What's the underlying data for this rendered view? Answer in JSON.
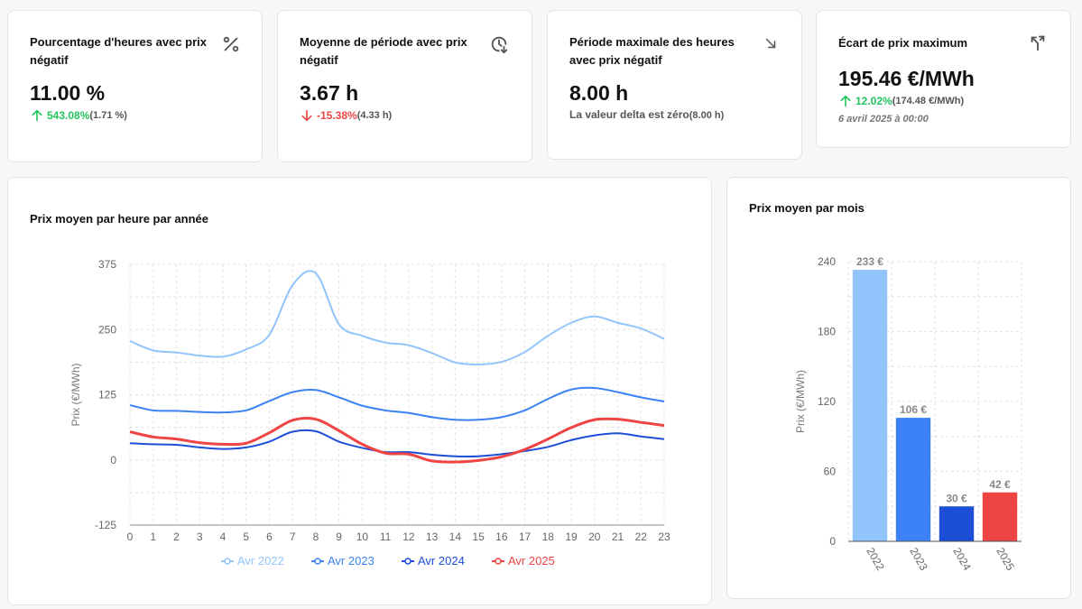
{
  "kpis": [
    {
      "title": "Pourcentage d'heures avec prix négatif",
      "icon": "percent-icon",
      "value": "11.00 %",
      "delta": "543.08%",
      "delta_direction": "up",
      "previous": "(1.71 %)"
    },
    {
      "title": "Moyenne de période avec prix négatif",
      "icon": "clock-down-icon",
      "value": "3.67 h",
      "delta": "-15.38%",
      "delta_direction": "down",
      "previous": "(4.33 h)"
    },
    {
      "title": "Période maximale des heures avec prix négatif",
      "icon": "arrow-down-right-icon",
      "value": "8.00 h",
      "note": "La valeur delta est zéro",
      "previous": "(8.00 h)"
    },
    {
      "title": "Écart de prix maximum",
      "icon": "split-arrows-icon",
      "value": "195.46 €/MWh",
      "delta": "12.02%",
      "delta_direction": "up",
      "previous": "(174.48 €/MWh)",
      "date": "6 avril 2025 à 00:00"
    }
  ],
  "colors": {
    "2022": "#93c5fd",
    "2023": "#3b82f6",
    "2024": "#1d4ed8",
    "2025": "#ef4444",
    "up": "#22c55e",
    "down": "#ef4444"
  },
  "chart_data": [
    {
      "type": "line",
      "title": "Prix moyen par heure par année",
      "ylabel": "Prix (€/MWh)",
      "xlabel": "",
      "x": [
        0,
        1,
        2,
        3,
        4,
        5,
        6,
        7,
        8,
        9,
        10,
        11,
        12,
        13,
        14,
        15,
        16,
        17,
        18,
        19,
        20,
        21,
        22,
        23
      ],
      "ylim": [
        -125,
        375
      ],
      "yticks": [
        -125,
        0,
        125,
        250,
        375
      ],
      "grid": true,
      "legend": "bottom",
      "series": [
        {
          "name": "Avr 2022",
          "color": "#93c5fd",
          "values": [
            228,
            210,
            206,
            200,
            198,
            212,
            240,
            335,
            358,
            260,
            238,
            225,
            220,
            205,
            187,
            183,
            188,
            207,
            238,
            263,
            275,
            263,
            252,
            232
          ]
        },
        {
          "name": "Avr 2023",
          "color": "#3b82f6",
          "values": [
            105,
            95,
            94,
            92,
            91,
            95,
            113,
            130,
            134,
            120,
            104,
            95,
            90,
            82,
            77,
            77,
            82,
            95,
            117,
            135,
            138,
            130,
            120,
            112
          ]
        },
        {
          "name": "Avr 2024",
          "color": "#1d4ed8",
          "values": [
            32,
            30,
            29,
            24,
            21,
            24,
            35,
            54,
            55,
            35,
            23,
            15,
            15,
            10,
            7,
            7,
            11,
            17,
            25,
            38,
            47,
            51,
            45,
            40
          ]
        },
        {
          "name": "Avr 2025",
          "color": "#ef4444",
          "values": [
            54,
            44,
            40,
            33,
            30,
            32,
            52,
            76,
            78,
            56,
            30,
            13,
            11,
            -2,
            -4,
            -1,
            6,
            20,
            40,
            62,
            77,
            78,
            72,
            66
          ]
        }
      ]
    },
    {
      "type": "bar",
      "title": "Prix moyen par mois",
      "ylabel": "Prix (€/MWh)",
      "xlabel": "",
      "categories": [
        "2022",
        "2023",
        "2024",
        "2025"
      ],
      "values": [
        233,
        106,
        30,
        42
      ],
      "data_labels": [
        "233 €",
        "106 €",
        "30 €",
        "42 €"
      ],
      "bar_colors": [
        "#93c5fd",
        "#3b82f6",
        "#1d4ed8",
        "#ef4444"
      ],
      "ylim": [
        0,
        240
      ],
      "yticks": [
        0,
        60,
        120,
        180,
        240
      ],
      "grid": true
    }
  ]
}
